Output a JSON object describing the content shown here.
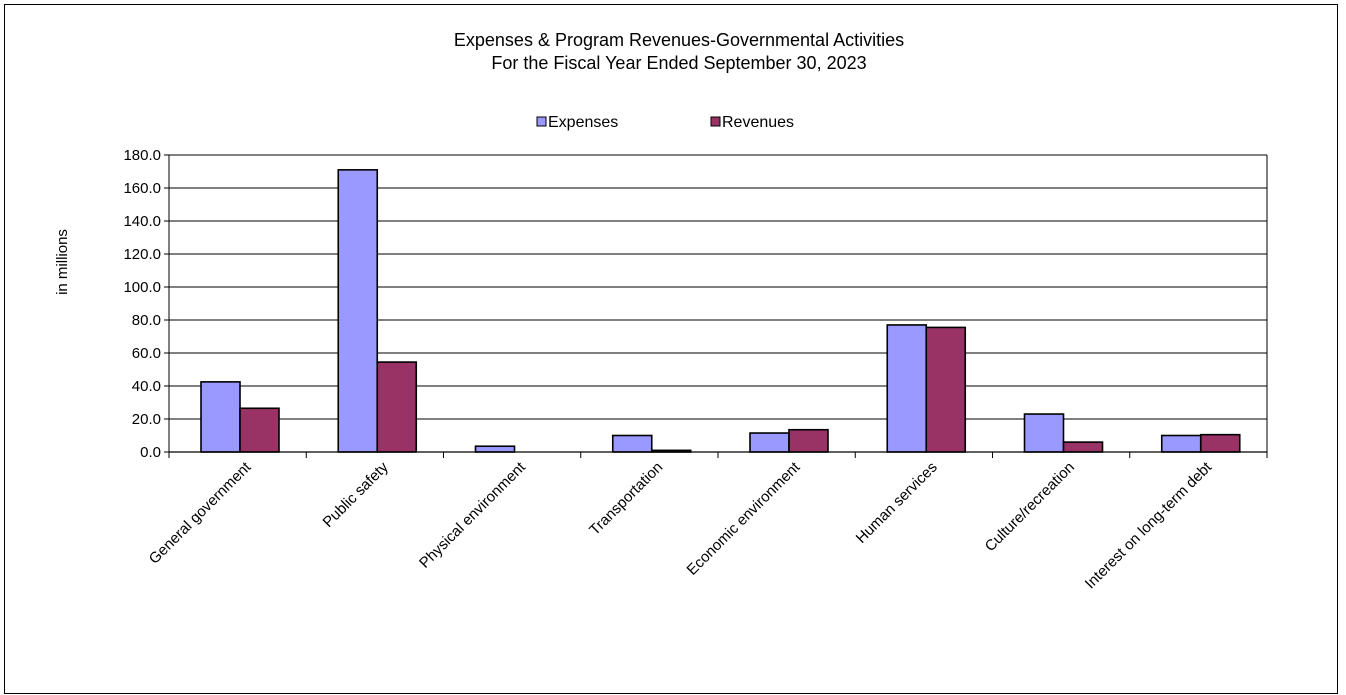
{
  "chart_data": {
    "type": "bar",
    "title_line1": "Expenses & Program Revenues-Governmental  Activities",
    "title_line2": "For the Fiscal Year Ended  September 30, 2023",
    "ylabel": "in millions",
    "xlabel": "",
    "ylim": [
      0,
      180
    ],
    "yticks": [
      "0.0",
      "20.0",
      "40.0",
      "60.0",
      "80.0",
      "100.0",
      "120.0",
      "140.0",
      "160.0",
      "180.0"
    ],
    "grid": true,
    "legend_position": "top-center",
    "categories": [
      "General government",
      "Public safety",
      "Physical environment",
      "Transportation",
      "Economic environment",
      "Human services",
      "Culture/recreation",
      "Interest on long-term debt"
    ],
    "series": [
      {
        "name": "Expenses",
        "color": "#9999ff",
        "values": [
          42.5,
          171.0,
          3.5,
          10.0,
          11.5,
          77.0,
          23.0,
          10.0
        ]
      },
      {
        "name": "Revenues",
        "color": "#993366",
        "values": [
          26.5,
          54.5,
          0.0,
          1.0,
          13.5,
          75.5,
          6.0,
          10.5
        ]
      }
    ]
  }
}
